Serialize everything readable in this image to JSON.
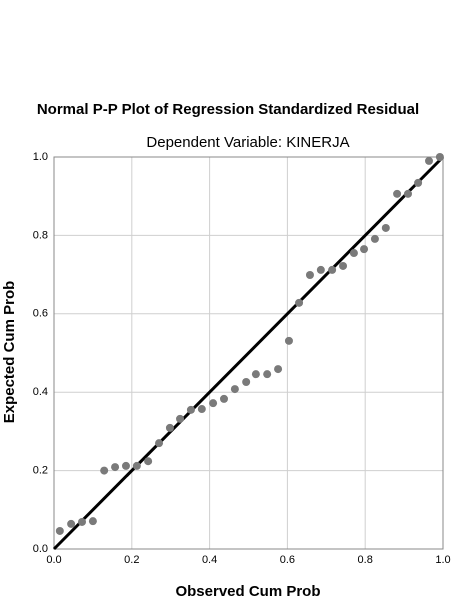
{
  "chart_data": {
    "type": "scatter",
    "title": "Normal P-P Plot of Regression Standardized Residual",
    "subtitle": "Dependent Variable: KINERJA",
    "x_label": "Observed Cum Prob",
    "y_label": "Expected Cum Prob",
    "color": "#7a7a7a",
    "line_color": "#000000",
    "grid": true,
    "xlim": [
      0,
      1
    ],
    "ylim": [
      0,
      1
    ],
    "xticks": [
      {
        "value": 0,
        "label": "0.0"
      },
      {
        "value": 0.2,
        "label": "0.2"
      },
      {
        "value": 0.4,
        "label": "0.4"
      },
      {
        "value": 0.6,
        "label": "0.6"
      },
      {
        "value": 0.8,
        "label": "0.8"
      },
      {
        "value": 1,
        "label": "1.0"
      }
    ],
    "yticks": [
      {
        "value": 0,
        "label": "0.0"
      },
      {
        "value": 0.2,
        "label": "0.2"
      },
      {
        "value": 0.4,
        "label": "0.4"
      },
      {
        "value": 0.6,
        "label": "0.6"
      },
      {
        "value": 0.8,
        "label": "0.8"
      },
      {
        "value": 1,
        "label": "1.0"
      }
    ],
    "x": [
      0.015,
      0.044,
      0.072,
      0.1,
      0.129,
      0.157,
      0.185,
      0.213,
      0.242,
      0.27,
      0.298,
      0.324,
      0.352,
      0.38,
      0.409,
      0.437,
      0.465,
      0.494,
      0.519,
      0.548,
      0.576,
      0.604,
      0.63,
      0.658,
      0.686,
      0.715,
      0.743,
      0.771,
      0.797,
      0.825,
      0.853,
      0.882,
      0.91,
      0.936,
      0.964,
      0.992
    ],
    "values": [
      0.046,
      0.064,
      0.069,
      0.071,
      0.2,
      0.209,
      0.212,
      0.212,
      0.224,
      0.27,
      0.309,
      0.332,
      0.355,
      0.357,
      0.372,
      0.383,
      0.408,
      0.426,
      0.446,
      0.446,
      0.459,
      0.531,
      0.628,
      0.699,
      0.712,
      0.712,
      0.722,
      0.755,
      0.765,
      0.791,
      0.819,
      0.906,
      0.906,
      0.934,
      0.99,
      1.0
    ]
  }
}
